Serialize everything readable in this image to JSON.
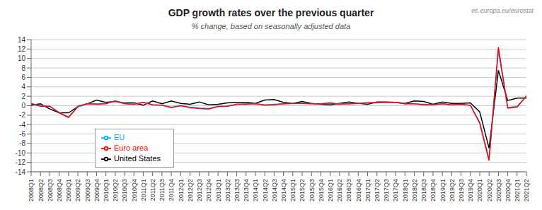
{
  "chart_data": {
    "type": "line",
    "title": "GDP growth rates over the previous quarter",
    "subtitle": "% change, based on seasonally adjusted data",
    "annotations": [
      "ec.europa.eu/eurostat"
    ],
    "categories": [
      "2008Q1",
      "2008Q2",
      "2008Q3",
      "2008Q4",
      "2009Q1",
      "2009Q2",
      "2009Q3",
      "2009Q4",
      "2010Q1",
      "2010Q2",
      "2010Q3",
      "2010Q4",
      "2011Q1",
      "2011Q2",
      "2011Q3",
      "2011Q4",
      "2012Q1",
      "2012Q2",
      "2012Q3",
      "2012Q4",
      "2013Q1",
      "2013Q2",
      "2013Q3",
      "2013Q4",
      "2014Q1",
      "2014Q2",
      "2014Q3",
      "2014Q4",
      "2015Q1",
      "2015Q2",
      "2015Q3",
      "2015Q4",
      "2016Q1",
      "2016Q2",
      "2016Q3",
      "2016Q4",
      "2017Q1",
      "2017Q2",
      "2017Q3",
      "2017Q4",
      "2018Q1",
      "2018Q2",
      "2018Q3",
      "2018Q4",
      "2019Q1",
      "2019Q2",
      "2019Q3",
      "2019Q4",
      "2020Q1",
      "2020Q2",
      "2020Q3",
      "2020Q4",
      "2021Q1",
      "2021Q2"
    ],
    "series": [
      {
        "name": "United States",
        "color": "#000000",
        "values": [
          0.1,
          0.4,
          -0.7,
          -1.5,
          -1.5,
          -0.2,
          0.4,
          1.2,
          0.7,
          0.9,
          0.6,
          0.6,
          0.1,
          1.0,
          0.4,
          1.0,
          0.5,
          0.3,
          0.8,
          0.2,
          0.3,
          0.6,
          0.7,
          0.7,
          0.5,
          1.2,
          1.3,
          0.7,
          0.5,
          0.9,
          0.5,
          0.3,
          0.2,
          0.5,
          0.8,
          0.5,
          0.3,
          0.8,
          0.8,
          0.7,
          0.5,
          1.0,
          0.9,
          0.3,
          0.8,
          0.5,
          0.5,
          0.6,
          -1.3,
          -9.0,
          7.5,
          1.1,
          1.6,
          1.6
        ]
      },
      {
        "name": "EU",
        "color": "#00AAFF",
        "values": [
          0.5,
          0.0,
          -0.2,
          -1.4,
          -2.4,
          -0.3,
          0.4,
          0.4,
          0.5,
          1.0,
          0.5,
          0.3,
          0.7,
          0.2,
          0.1,
          -0.3,
          0.0,
          -0.3,
          -0.5,
          -0.6,
          -0.1,
          -0.1,
          0.3,
          0.4,
          0.4,
          0.2,
          0.3,
          0.4,
          0.5,
          0.5,
          0.4,
          0.4,
          0.5,
          0.4,
          0.4,
          0.5,
          0.6,
          0.6,
          0.7,
          0.7,
          0.4,
          0.4,
          0.3,
          0.2,
          0.4,
          0.2,
          0.3,
          0.1,
          -3.5,
          -11.3,
          11.6,
          -0.4,
          -0.1,
          1.9
        ]
      },
      {
        "name": "Euro area",
        "color": "#FF0000",
        "values": [
          0.4,
          -0.1,
          -0.1,
          -1.5,
          -2.5,
          -0.1,
          0.4,
          0.3,
          0.4,
          1.0,
          0.4,
          0.3,
          0.7,
          0.2,
          0.1,
          -0.4,
          0.0,
          -0.4,
          -0.6,
          -0.7,
          -0.2,
          -0.1,
          0.3,
          0.3,
          0.4,
          0.1,
          0.2,
          0.4,
          0.5,
          0.5,
          0.4,
          0.4,
          0.6,
          0.3,
          0.4,
          0.5,
          0.6,
          0.7,
          0.7,
          0.7,
          0.4,
          0.4,
          0.2,
          0.2,
          0.4,
          0.2,
          0.3,
          0.1,
          -3.7,
          -11.6,
          12.4,
          -0.5,
          -0.3,
          2.1
        ]
      }
    ],
    "ylim": [
      -14,
      14
    ],
    "yticks": [
      -14,
      -12,
      -10,
      -8,
      -6,
      -4,
      -2,
      0,
      2,
      4,
      6,
      8,
      10,
      12,
      14
    ],
    "grid": true,
    "legend": "lower left"
  }
}
